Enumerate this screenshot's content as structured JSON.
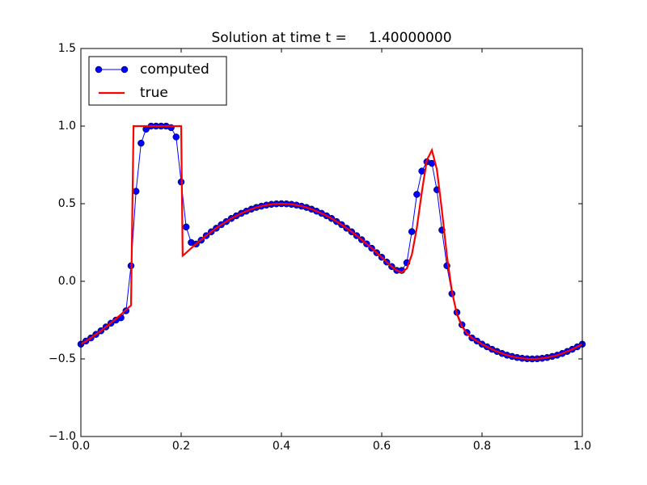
{
  "chart_data": {
    "type": "line",
    "title": "Solution at time t =     1.40000000",
    "xlim": [
      0,
      1
    ],
    "ylim": [
      -1,
      1.5
    ],
    "xticks": [
      {
        "value": 0,
        "label": "0.0"
      },
      {
        "value": 0.2,
        "label": "0.2"
      },
      {
        "value": 0.4,
        "label": "0.4"
      },
      {
        "value": 0.6,
        "label": "0.6"
      },
      {
        "value": 0.8,
        "label": "0.8"
      },
      {
        "value": 1,
        "label": "1.0"
      }
    ],
    "yticks": [
      {
        "value": -1,
        "label": "−1.0"
      },
      {
        "value": -0.5,
        "label": "−0.5"
      },
      {
        "value": 0,
        "label": "0.0"
      },
      {
        "value": 0.5,
        "label": "0.5"
      },
      {
        "value": 1,
        "label": "1.0"
      },
      {
        "value": 1.5,
        "label": "1.5"
      }
    ],
    "legend": "upper left",
    "series": [
      {
        "name": "computed",
        "color": "#0000ff",
        "marker": "o",
        "x": [
          0,
          0.01,
          0.02,
          0.03,
          0.04,
          0.05,
          0.06,
          0.07,
          0.08,
          0.09,
          0.1,
          0.11,
          0.12,
          0.13,
          0.14,
          0.15,
          0.16,
          0.17,
          0.18,
          0.19,
          0.2,
          0.21,
          0.22,
          0.23,
          0.24,
          0.25,
          0.26,
          0.27,
          0.28,
          0.29,
          0.3,
          0.31,
          0.32,
          0.33,
          0.34,
          0.35,
          0.36,
          0.37,
          0.38,
          0.39,
          0.4,
          0.41,
          0.42,
          0.43,
          0.44,
          0.45,
          0.46,
          0.47,
          0.48,
          0.49,
          0.5,
          0.51,
          0.52,
          0.53,
          0.54,
          0.55,
          0.56,
          0.57,
          0.58,
          0.59,
          0.6,
          0.61,
          0.62,
          0.63,
          0.64,
          0.65,
          0.66,
          0.67,
          0.68,
          0.69,
          0.7,
          0.71,
          0.72,
          0.73,
          0.74,
          0.75,
          0.76,
          0.77,
          0.78,
          0.79,
          0.8,
          0.81,
          0.82,
          0.83,
          0.84,
          0.85,
          0.86,
          0.87,
          0.88,
          0.89,
          0.9,
          0.91,
          0.92,
          0.93,
          0.94,
          0.95,
          0.96,
          0.97,
          0.98,
          0.99,
          1
        ],
        "values": [
          -0.405,
          -0.385,
          -0.365,
          -0.342,
          -0.319,
          -0.294,
          -0.27,
          -0.25,
          -0.235,
          -0.19,
          0.1,
          0.58,
          0.89,
          0.98,
          1,
          1,
          1,
          1,
          0.99,
          0.93,
          0.64,
          0.35,
          0.25,
          0.24,
          0.265,
          0.294,
          0.319,
          0.342,
          0.365,
          0.385,
          0.405,
          0.422,
          0.438,
          0.452,
          0.465,
          0.476,
          0.484,
          0.491,
          0.496,
          0.499,
          0.5,
          0.499,
          0.496,
          0.491,
          0.484,
          0.476,
          0.465,
          0.452,
          0.438,
          0.422,
          0.405,
          0.385,
          0.365,
          0.342,
          0.319,
          0.294,
          0.268,
          0.241,
          0.213,
          0.184,
          0.155,
          0.124,
          0.095,
          0.07,
          0.07,
          0.12,
          0.32,
          0.56,
          0.71,
          0.77,
          0.76,
          0.59,
          0.33,
          0.1,
          -0.08,
          -0.2,
          -0.28,
          -0.33,
          -0.365,
          -0.385,
          -0.405,
          -0.422,
          -0.438,
          -0.452,
          -0.465,
          -0.476,
          -0.484,
          -0.491,
          -0.496,
          -0.499,
          -0.5,
          -0.499,
          -0.496,
          -0.491,
          -0.484,
          -0.476,
          -0.465,
          -0.452,
          -0.438,
          -0.422,
          -0.405
        ]
      },
      {
        "name": "true",
        "color": "#ff0000",
        "x": [
          0,
          0.01,
          0.02,
          0.03,
          0.04,
          0.05,
          0.06,
          0.07,
          0.08,
          0.09,
          0.1,
          0.105,
          0.2,
          0.203,
          0.21,
          0.22,
          0.23,
          0.24,
          0.25,
          0.26,
          0.27,
          0.28,
          0.29,
          0.3,
          0.31,
          0.32,
          0.33,
          0.34,
          0.35,
          0.36,
          0.37,
          0.38,
          0.39,
          0.4,
          0.41,
          0.42,
          0.43,
          0.44,
          0.45,
          0.46,
          0.47,
          0.48,
          0.49,
          0.5,
          0.51,
          0.52,
          0.53,
          0.54,
          0.55,
          0.56,
          0.57,
          0.58,
          0.59,
          0.6,
          0.61,
          0.62,
          0.63,
          0.64,
          0.65,
          0.66,
          0.67,
          0.68,
          0.69,
          0.7,
          0.71,
          0.72,
          0.73,
          0.74,
          0.75,
          0.76,
          0.77,
          0.78,
          0.79,
          0.8,
          0.81,
          0.82,
          0.83,
          0.84,
          0.85,
          0.86,
          0.87,
          0.88,
          0.89,
          0.9,
          0.91,
          0.92,
          0.93,
          0.94,
          0.95,
          0.96,
          0.97,
          0.98,
          0.99,
          1
        ],
        "values": [
          -0.405,
          -0.385,
          -0.365,
          -0.342,
          -0.319,
          -0.294,
          -0.268,
          -0.241,
          -0.213,
          -0.184,
          -0.155,
          1,
          1,
          0.165,
          0.184,
          0.213,
          0.241,
          0.268,
          0.294,
          0.319,
          0.342,
          0.365,
          0.385,
          0.405,
          0.422,
          0.438,
          0.452,
          0.465,
          0.476,
          0.484,
          0.491,
          0.496,
          0.499,
          0.5,
          0.499,
          0.496,
          0.491,
          0.484,
          0.476,
          0.465,
          0.452,
          0.438,
          0.422,
          0.405,
          0.385,
          0.365,
          0.342,
          0.319,
          0.294,
          0.268,
          0.241,
          0.213,
          0.184,
          0.155,
          0.124,
          0.094,
          0.07,
          0.058,
          0.082,
          0.171,
          0.344,
          0.576,
          0.781,
          0.845,
          0.721,
          0.457,
          0.166,
          -0.066,
          -0.212,
          -0.292,
          -0.335,
          -0.365,
          -0.385,
          -0.405,
          -0.422,
          -0.438,
          -0.452,
          -0.465,
          -0.476,
          -0.484,
          -0.491,
          -0.496,
          -0.499,
          -0.5,
          -0.499,
          -0.496,
          -0.491,
          -0.484,
          -0.476,
          -0.465,
          -0.452,
          -0.438,
          -0.422,
          -0.405
        ]
      }
    ]
  }
}
